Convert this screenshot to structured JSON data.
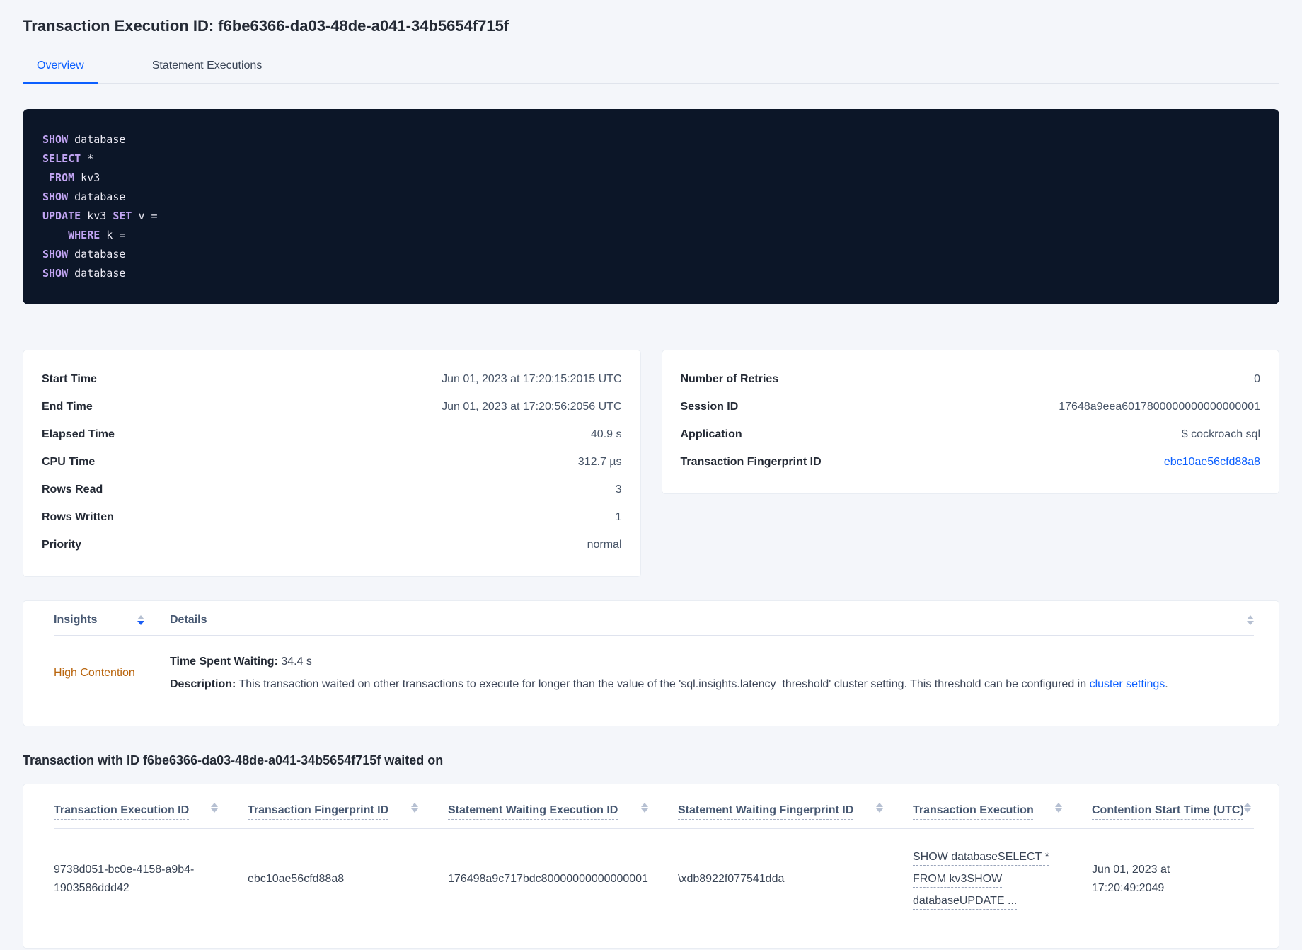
{
  "page": {
    "title": "Transaction Execution ID: f6be6366-da03-48de-a041-34b5654f715f",
    "tabs": {
      "overview": "Overview",
      "statement_executions": "Statement Executions"
    }
  },
  "colors": {
    "accent_blue": "#0b5fff",
    "insight_orange": "#b9650e",
    "code_background": "#0c1628",
    "code_keyword": "#c1a4f2",
    "code_text": "#eceaf4"
  },
  "icons": {
    "sort": "sort-arrows-up-down"
  },
  "sql_lines": [
    {
      "kw": "SHOW",
      "rest": " database"
    },
    {
      "kw": "SELECT",
      "rest": " *"
    },
    {
      "pre": " ",
      "kw": "FROM",
      "rest": " kv3"
    },
    {
      "kw": "SHOW",
      "rest": " database"
    },
    {
      "kw": "UPDATE",
      "mid": " kv3 ",
      "kw2": "SET",
      "rest": " v = _"
    },
    {
      "pre": "    ",
      "kw": "WHERE",
      "rest": " k = _"
    },
    {
      "kw": "SHOW",
      "rest": " database"
    },
    {
      "kw": "SHOW",
      "rest": " database"
    }
  ],
  "summary_left": {
    "rows": [
      {
        "label": "Start Time",
        "value": "Jun 01, 2023 at 17:20:15:2015 UTC"
      },
      {
        "label": "End Time",
        "value": "Jun 01, 2023 at 17:20:56:2056 UTC"
      },
      {
        "label": "Elapsed Time",
        "value": "40.9 s"
      },
      {
        "label": "CPU Time",
        "value": "312.7 µs"
      },
      {
        "label": "Rows Read",
        "value": "3"
      },
      {
        "label": "Rows Written",
        "value": "1"
      },
      {
        "label": "Priority",
        "value": "normal"
      }
    ]
  },
  "summary_right": {
    "rows": [
      {
        "label": "Number of Retries",
        "value": "0"
      },
      {
        "label": "Session ID",
        "value": "17648a9eea6017800000000000000001"
      },
      {
        "label": "Application",
        "value": "$ cockroach sql"
      },
      {
        "label": "Transaction Fingerprint ID",
        "value": "ebc10ae56cfd88a8"
      }
    ]
  },
  "insights": {
    "col_insights": "Insights",
    "col_details": "Details",
    "row": {
      "insight": "High Contention",
      "waiting_label": "Time Spent Waiting:",
      "waiting_value": " 34.4 s",
      "description_label": "Description:",
      "description_text": " This transaction waited on other transactions to execute for longer than the value of the 'sql.insights.latency_threshold' cluster setting. This threshold can be configured in ",
      "description_link": "cluster settings",
      "description_suffix": "."
    }
  },
  "waited_on": {
    "heading": "Transaction with ID f6be6366-da03-48de-a041-34b5654f715f waited on",
    "columns": [
      "Transaction Execution ID",
      "Transaction Fingerprint ID",
      "Statement Waiting Execution ID",
      "Statement Waiting Fingerprint ID",
      "Transaction Execution",
      "Contention Start Time (UTC)"
    ],
    "row": {
      "transaction_execution_id": "9738d051-bc0e-4158-a9b4-1903586ddd42",
      "transaction_fingerprint_id": "ebc10ae56cfd88a8",
      "statement_waiting_execution_id": "176498a9c717bdc80000000000000001",
      "statement_waiting_fingerprint_id": "\\xdb8922f077541dda",
      "transaction_execution": "SHOW databaseSELECT * FROM kv3SHOW databaseUPDATE ...",
      "contention_start_time": "Jun 01, 2023 at 17:20:49:2049"
    }
  }
}
